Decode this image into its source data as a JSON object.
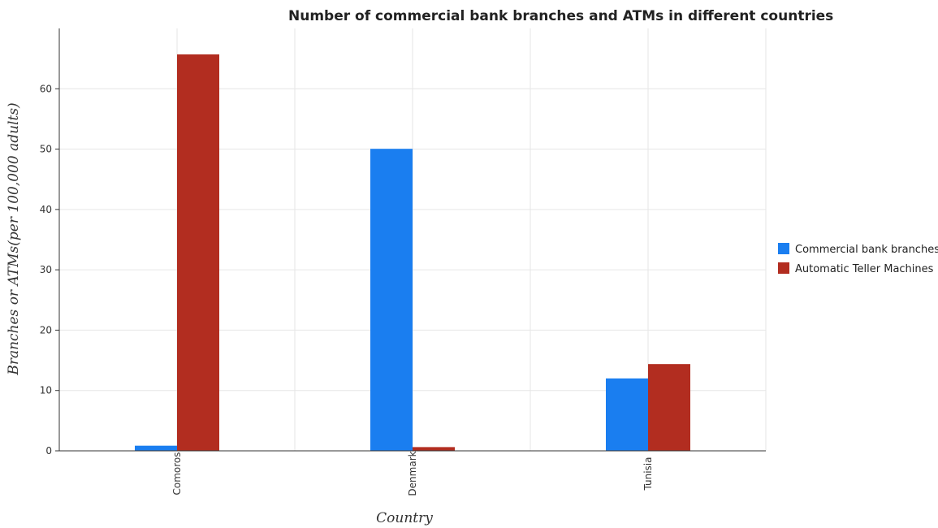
{
  "chart_data": {
    "type": "bar",
    "title": "Number of commercial bank branches and ATMs in different countries",
    "xlabel": "Country",
    "ylabel": "Branches or ATMs(per 100,000 adults)",
    "categories": [
      "Comoros",
      "Denmark",
      "Tunisia"
    ],
    "series": [
      {
        "name": "Commercial bank branches",
        "color": "#1a7ef0",
        "values": [
          0.85,
          50.05,
          12.0
        ]
      },
      {
        "name": "Automatic Teller Machines",
        "color": "#b22d20",
        "values": [
          65.7,
          0.62,
          14.38
        ]
      }
    ],
    "ylim": [
      0,
      70
    ],
    "yticks": [
      0,
      10,
      20,
      30,
      40,
      50,
      60
    ],
    "grid": true,
    "legend": "right"
  }
}
